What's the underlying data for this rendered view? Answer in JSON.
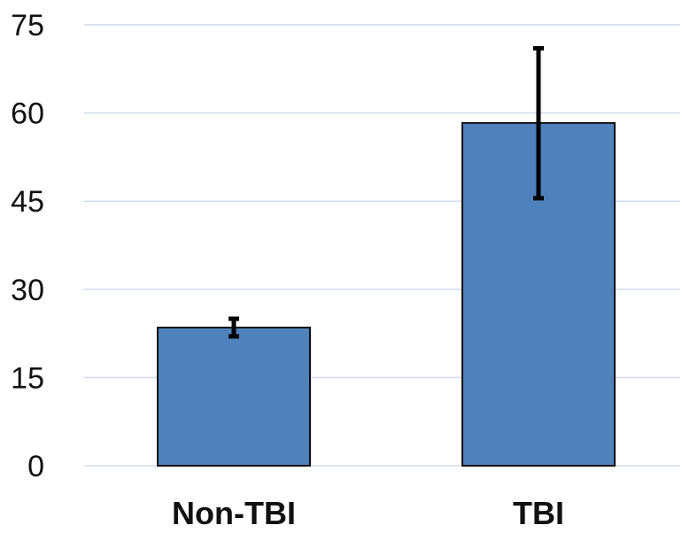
{
  "chart_data": {
    "type": "bar",
    "title": "",
    "xlabel": "",
    "ylabel": "",
    "categories": [
      "Non-TBI",
      "TBI"
    ],
    "values": [
      23.5,
      58.3
    ],
    "error_low": [
      22.0,
      45.5
    ],
    "error_high": [
      25.0,
      71.0
    ],
    "ylim": [
      0,
      75
    ],
    "yticks": [
      0,
      15,
      30,
      45,
      60,
      75
    ],
    "ytick_labels": [
      "0",
      "15",
      "30",
      "45",
      "60",
      "75"
    ],
    "grid": true,
    "legend": "none",
    "colors": {
      "bar_fill": "#4f81bd",
      "bar_edge": "#111111",
      "error_bar": "#000000",
      "gridline": "#d0dcea",
      "text": "#111111"
    }
  }
}
